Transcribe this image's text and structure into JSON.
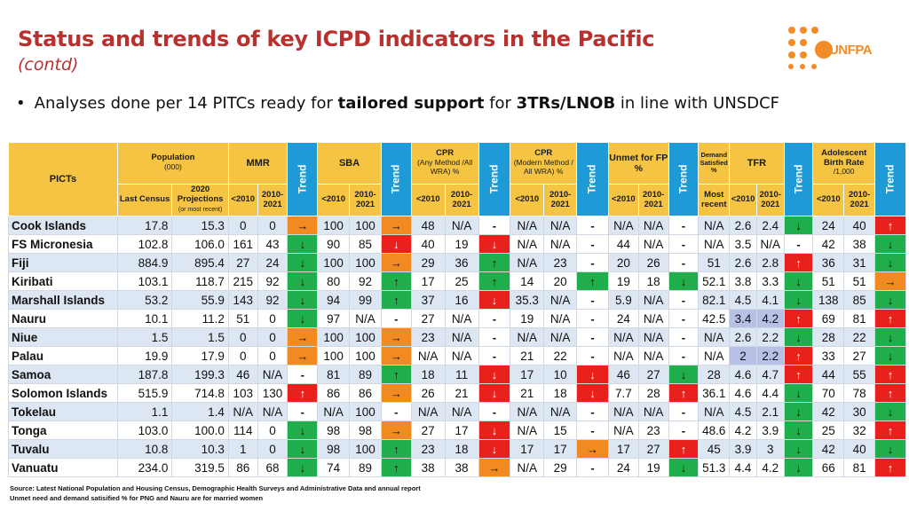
{
  "title": "Status and trends of key ICPD indicators in the Pacific",
  "subtitle": "(contd)",
  "bullet": {
    "pre": "Analyses done per 14 PITCs ready for ",
    "bold1": "tailored support",
    "mid": " for ",
    "bold2": "3TRs/LNOB",
    "post": " in line with UNSDCF"
  },
  "logo": {
    "text": "UNFPA",
    "color": "#f28c28"
  },
  "headers": {
    "picts": "PICTs",
    "population": "Population",
    "population_unit": "(000)",
    "mmr": "MMR",
    "trend": "Trend",
    "sba": "SBA",
    "cpr_any": "CPR",
    "cpr_any_sub": "(Any Method /All WRA) %",
    "cpr_modern": "CPR",
    "cpr_modern_sub": "(Modern Method / All WRA) %",
    "unmet": "Unmet for FP %",
    "demand": "Demand Satisfied %",
    "tfr": "TFR",
    "abr": "Adolescent Birth Rate",
    "abr_unit": "/1,000",
    "last_census": "Last Census",
    "proj_a": "2020",
    "proj_b": "Projections",
    "proj_c": "(or most recent)",
    "lt2010": "<2010",
    "r2010": "2010-2021",
    "most_recent": "Most recent"
  },
  "rows": [
    {
      "name": "Cook Islands",
      "pop_c": "17.8",
      "pop_p": "15.3",
      "mmr1": "0",
      "mmr2": "0",
      "mmr_t": "→",
      "sba1": "100",
      "sba2": "100",
      "sba_t": "→",
      "cpa1": "48",
      "cpa2": "N/A",
      "cpa_t": "-",
      "cpm1": "N/A",
      "cpm2": "N/A",
      "cpm_t": "-",
      "un1": "N/A",
      "un2": "N/A",
      "un_t": "-",
      "ds": "N/A",
      "tfr1": "2.6",
      "tfr2": "2.4",
      "tfr_t": "↓",
      "abr1": "24",
      "abr2": "40",
      "abr_t": "↑"
    },
    {
      "name": "FS Micronesia",
      "pop_c": "102.8",
      "pop_p": "106.0",
      "mmr1": "161",
      "mmr2": "43",
      "mmr_t": "↓",
      "sba1": "90",
      "sba2": "85",
      "sba_t": "↓",
      "cpa1": "40",
      "cpa2": "19",
      "cpa_t": "↓",
      "cpm1": "N/A",
      "cpm2": "N/A",
      "cpm_t": "-",
      "un1": "44",
      "un2": "N/A",
      "un_t": "-",
      "ds": "N/A",
      "tfr1": "3.5",
      "tfr2": "N/A",
      "tfr_t": "-",
      "abr1": "42",
      "abr2": "38",
      "abr_t": "↓"
    },
    {
      "name": "Fiji",
      "pop_c": "884.9",
      "pop_p": "895.4",
      "mmr1": "27",
      "mmr2": "24",
      "mmr_t": "↓",
      "sba1": "100",
      "sba2": "100",
      "sba_t": "→",
      "cpa1": "29",
      "cpa2": "36",
      "cpa_t": "↑",
      "cpm1": "N/A",
      "cpm2": "23",
      "cpm_t": "-",
      "un1": "20",
      "un2": "26",
      "un_t": "-",
      "ds": "51",
      "tfr1": "2.6",
      "tfr2": "2.8",
      "tfr_t": "↑",
      "abr1": "36",
      "abr2": "31",
      "abr_t": "↓"
    },
    {
      "name": "Kiribati",
      "pop_c": "103.1",
      "pop_p": "118.7",
      "mmr1": "215",
      "mmr2": "92",
      "mmr_t": "↓",
      "sba1": "80",
      "sba2": "92",
      "sba_t": "↑",
      "cpa1": "17",
      "cpa2": "25",
      "cpa_t": "↑",
      "cpm1": "14",
      "cpm2": "20",
      "cpm_t": "↑",
      "un1": "19",
      "un2": "18",
      "un_t": "↓",
      "ds": "52.1",
      "tfr1": "3.8",
      "tfr2": "3.3",
      "tfr_t": "↓",
      "abr1": "51",
      "abr2": "51",
      "abr_t": "→"
    },
    {
      "name": "Marshall Islands",
      "pop_c": "53.2",
      "pop_p": "55.9",
      "mmr1": "143",
      "mmr2": "92",
      "mmr_t": "↓",
      "sba1": "94",
      "sba2": "99",
      "sba_t": "↑",
      "cpa1": "37",
      "cpa2": "16",
      "cpa_t": "↓",
      "cpm1": "35.3",
      "cpm2": "N/A",
      "cpm_t": "-",
      "un1": "5.9",
      "un2": "N/A",
      "un_t": "-",
      "ds": "82.1",
      "tfr1": "4.5",
      "tfr2": "4.1",
      "tfr_t": "↓",
      "abr1": "138",
      "abr2": "85",
      "abr_t": "↓"
    },
    {
      "name": "Nauru",
      "pop_c": "10.1",
      "pop_p": "11.2",
      "mmr1": "51",
      "mmr2": "0",
      "mmr_t": "↓",
      "sba1": "97",
      "sba2": "N/A",
      "sba_t": "-",
      "cpa1": "27",
      "cpa2": "N/A",
      "cpa_t": "-",
      "cpm1": "19",
      "cpm2": "N/A",
      "cpm_t": "-",
      "un1": "24",
      "un2": "N/A",
      "un_t": "-",
      "ds": "42.5",
      "tfr1": "3.4",
      "tfr2": "4.2",
      "tfr_t": "↑",
      "abr1": "69",
      "abr2": "81",
      "abr_t": "↑"
    },
    {
      "name": "Niue",
      "pop_c": "1.5",
      "pop_p": "1.5",
      "mmr1": "0",
      "mmr2": "0",
      "mmr_t": "→",
      "sba1": "100",
      "sba2": "100",
      "sba_t": "→",
      "cpa1": "23",
      "cpa2": "N/A",
      "cpa_t": "-",
      "cpm1": "N/A",
      "cpm2": "N/A",
      "cpm_t": "-",
      "un1": "N/A",
      "un2": "N/A",
      "un_t": "-",
      "ds": "N/A",
      "tfr1": "2.6",
      "tfr2": "2.2",
      "tfr_t": "↓",
      "abr1": "28",
      "abr2": "22",
      "abr_t": "↓"
    },
    {
      "name": "Palau",
      "pop_c": "19.9",
      "pop_p": "17.9",
      "mmr1": "0",
      "mmr2": "0",
      "mmr_t": "→",
      "sba1": "100",
      "sba2": "100",
      "sba_t": "→",
      "cpa1": "N/A",
      "cpa2": "N/A",
      "cpa_t": "-",
      "cpm1": "21",
      "cpm2": "22",
      "cpm_t": "-",
      "un1": "N/A",
      "un2": "N/A",
      "un_t": "-",
      "ds": "N/A",
      "tfr1": "2",
      "tfr2": "2.2",
      "tfr_t": "↑",
      "abr1": "33",
      "abr2": "27",
      "abr_t": "↓"
    },
    {
      "name": "Samoa",
      "pop_c": "187.8",
      "pop_p": "199.3",
      "mmr1": "46",
      "mmr2": "N/A",
      "mmr_t": "-",
      "sba1": "81",
      "sba2": "89",
      "sba_t": "↑",
      "cpa1": "18",
      "cpa2": "11",
      "cpa_t": "↓",
      "cpm1": "17",
      "cpm2": "10",
      "cpm_t": "↓",
      "un1": "46",
      "un2": "27",
      "un_t": "↓",
      "ds": "28",
      "tfr1": "4.6",
      "tfr2": "4.7",
      "tfr_t": "↑",
      "abr1": "44",
      "abr2": "55",
      "abr_t": "↑"
    },
    {
      "name": "Solomon Islands",
      "pop_c": "515.9",
      "pop_p": "714.8",
      "mmr1": "103",
      "mmr2": "130",
      "mmr_t": "↑",
      "sba1": "86",
      "sba2": "86",
      "sba_t": "→",
      "cpa1": "26",
      "cpa2": "21",
      "cpa_t": "↓",
      "cpm1": "21",
      "cpm2": "18",
      "cpm_t": "↓",
      "un1": "7.7",
      "un2": "28",
      "un_t": "↑",
      "ds": "36.1",
      "tfr1": "4.6",
      "tfr2": "4.4",
      "tfr_t": "↓",
      "abr1": "70",
      "abr2": "78",
      "abr_t": "↑"
    },
    {
      "name": "Tokelau",
      "pop_c": "1.1",
      "pop_p": "1.4",
      "mmr1": "N/A",
      "mmr2": "N/A",
      "mmr_t": "-",
      "sba1": "N/A",
      "sba2": "100",
      "sba_t": "-",
      "cpa1": "N/A",
      "cpa2": "N/A",
      "cpa_t": "-",
      "cpm1": "N/A",
      "cpm2": "N/A",
      "cpm_t": "-",
      "un1": "N/A",
      "un2": "N/A",
      "un_t": "-",
      "ds": "N/A",
      "tfr1": "4.5",
      "tfr2": "2.1",
      "tfr_t": "↓",
      "abr1": "42",
      "abr2": "30",
      "abr_t": "↓"
    },
    {
      "name": "Tonga",
      "pop_c": "103.0",
      "pop_p": "100.0",
      "mmr1": "114",
      "mmr2": "0",
      "mmr_t": "↓",
      "sba1": "98",
      "sba2": "98",
      "sba_t": "→",
      "cpa1": "27",
      "cpa2": "17",
      "cpa_t": "↓",
      "cpm1": "N/A",
      "cpm2": "15",
      "cpm_t": "-",
      "un1": "N/A",
      "un2": "23",
      "un_t": "-",
      "ds": "48.6",
      "tfr1": "4.2",
      "tfr2": "3.9",
      "tfr_t": "↓",
      "abr1": "25",
      "abr2": "32",
      "abr_t": "↑"
    },
    {
      "name": "Tuvalu",
      "pop_c": "10.8",
      "pop_p": "10.3",
      "mmr1": "1",
      "mmr2": "0",
      "mmr_t": "↓",
      "sba1": "98",
      "sba2": "100",
      "sba_t": "↑",
      "cpa1": "23",
      "cpa2": "18",
      "cpa_t": "↓",
      "cpm1": "17",
      "cpm2": "17",
      "cpm_t": "→",
      "un1": "17",
      "un2": "27",
      "un_t": "↑",
      "ds": "45",
      "tfr1": "3.9",
      "tfr2": "3",
      "tfr_t": "↓",
      "abr1": "42",
      "abr2": "40",
      "abr_t": "↓"
    },
    {
      "name": "Vanuatu",
      "pop_c": "234.0",
      "pop_p": "319.5",
      "mmr1": "86",
      "mmr2": "68",
      "mmr_t": "↓",
      "sba1": "74",
      "sba2": "89",
      "sba_t": "↑",
      "cpa1": "38",
      "cpa2": "38",
      "cpa_t": "→",
      "cpm1": "N/A",
      "cpm2": "29",
      "cpm_t": "-",
      "un1": "24",
      "un2": "19",
      "un_t": "↓",
      "ds": "51.3",
      "tfr1": "4.4",
      "tfr2": "4.2",
      "tfr_t": "↓",
      "abr1": "66",
      "abr2": "81",
      "abr_t": "↑"
    }
  ],
  "lavender_cells": [
    [
      5,
      "tfr1"
    ],
    [
      5,
      "tfr2"
    ],
    [
      7,
      "tfr1"
    ],
    [
      7,
      "tfr2"
    ]
  ],
  "source_line1": "Source: Latest National Population and Housing Census, Demographic Health Surveys and Administrative Data and annual report",
  "source_line2": "Unmet need and demand satisified % for PNG and Nauru are for married women",
  "colors": {
    "title": "#b8312f",
    "header": "#f5c443",
    "trend_header": "#1e9bd7",
    "green": "#1fae4b",
    "red": "#e8211c",
    "orange": "#f28a22",
    "row_alt": "#dde7f3"
  }
}
